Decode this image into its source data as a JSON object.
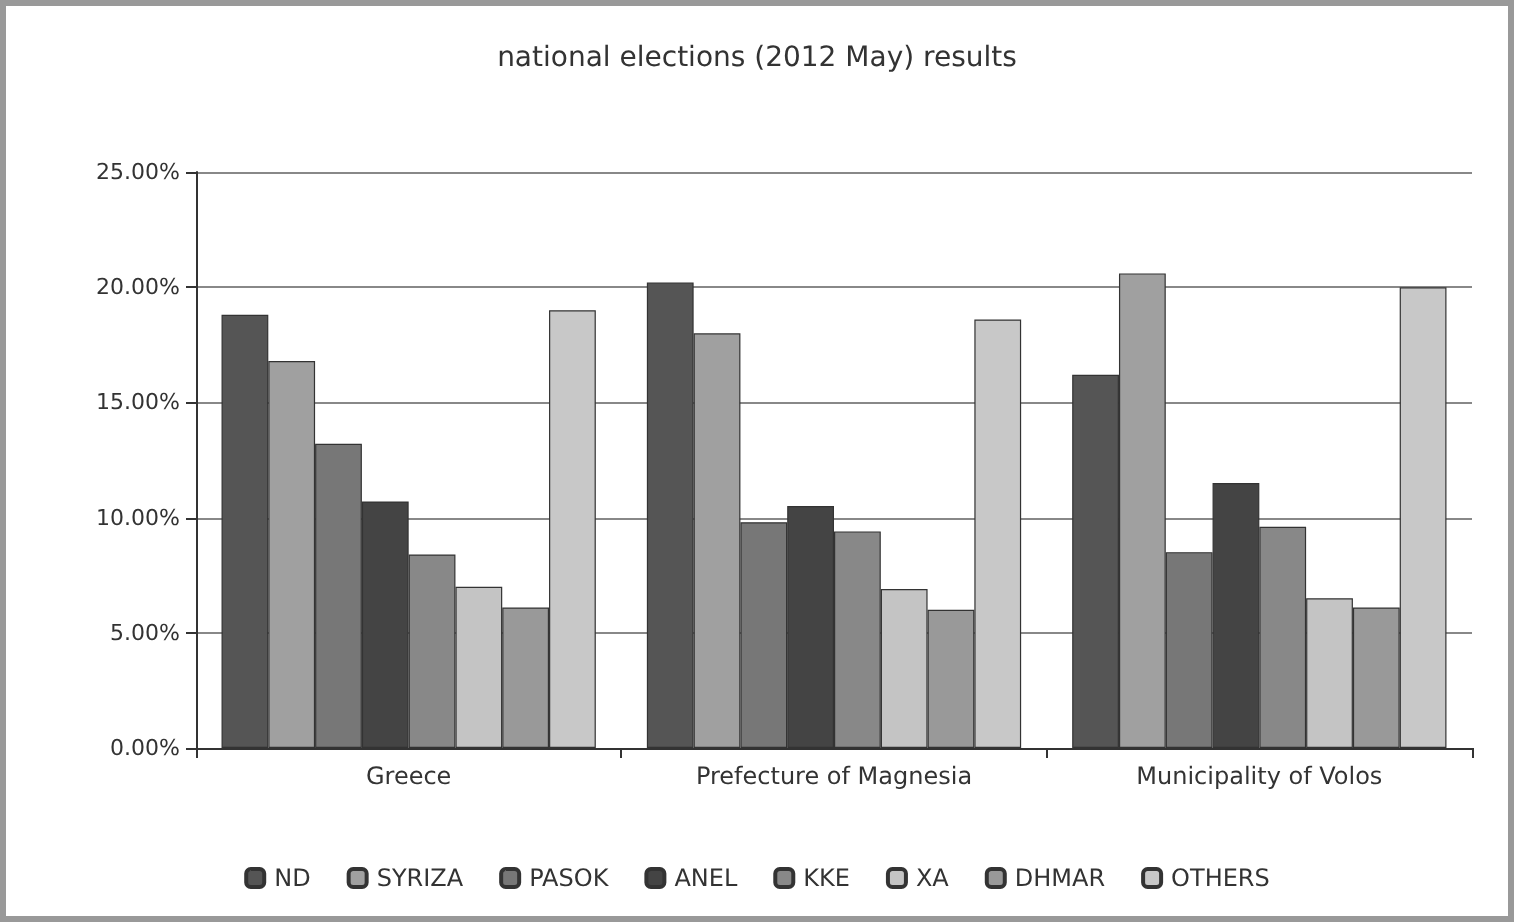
{
  "chart_data": {
    "type": "bar",
    "title": "national elections (2012 May) results",
    "categories": [
      "Greece",
      "Prefecture of Magnesia",
      "Municipality of Volos"
    ],
    "series": [
      {
        "name": "ND",
        "color": "#555555",
        "values": [
          18.8,
          20.2,
          16.2
        ]
      },
      {
        "name": "SYRIZA",
        "color": "#a0a0a0",
        "values": [
          16.8,
          18.0,
          20.6
        ]
      },
      {
        "name": "PASOK",
        "color": "#777777",
        "values": [
          13.2,
          9.8,
          8.5
        ]
      },
      {
        "name": "ANEL",
        "color": "#444444",
        "values": [
          10.7,
          10.5,
          11.5
        ]
      },
      {
        "name": "KKE",
        "color": "#888888",
        "values": [
          8.4,
          9.4,
          9.6
        ]
      },
      {
        "name": "XA",
        "color": "#c4c4c4",
        "values": [
          7.0,
          6.9,
          6.5
        ]
      },
      {
        "name": "DHMAR",
        "color": "#999999",
        "values": [
          6.1,
          6.0,
          6.1
        ]
      },
      {
        "name": "OTHERS",
        "color": "#c8c8c8",
        "values": [
          19.0,
          18.6,
          20.0
        ]
      }
    ],
    "ylim": [
      0,
      25
    ],
    "yticks": [
      {
        "value": 0,
        "label": "0.00%"
      },
      {
        "value": 5,
        "label": "5.00%"
      },
      {
        "value": 10,
        "label": "10.00%"
      },
      {
        "value": 15,
        "label": "15.00%"
      },
      {
        "value": 20,
        "label": "20.00%"
      },
      {
        "value": 25,
        "label": "25.00%"
      }
    ],
    "grid": "y",
    "legend": "bottom"
  }
}
